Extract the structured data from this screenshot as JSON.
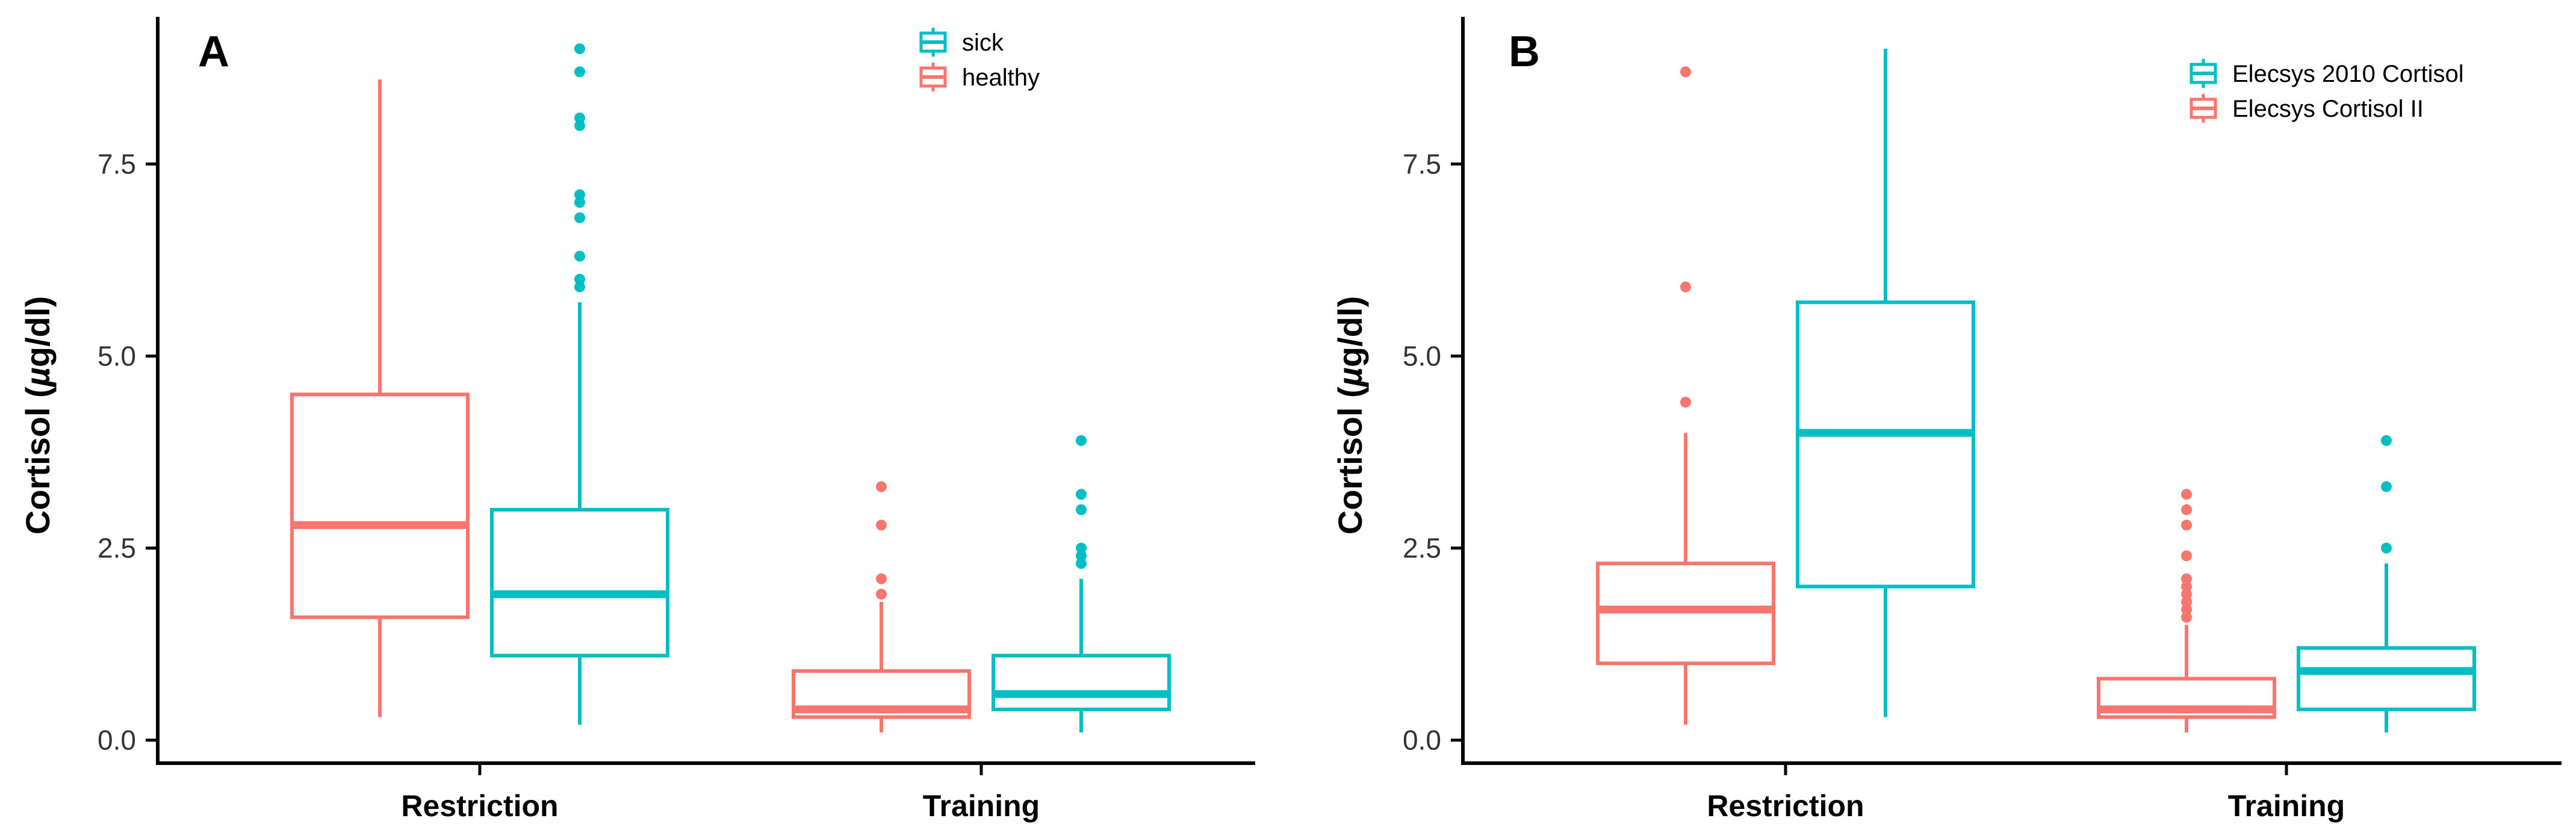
{
  "chart_data": [
    {
      "panel": "A",
      "type": "boxplot",
      "ylabel": "Cortisol (µg/dl)",
      "ylabel_parts": [
        "Cortisol (",
        "µ",
        "g/dl)"
      ],
      "ylim": [
        -0.3,
        9.4
      ],
      "yticks": [
        0.0,
        2.5,
        5.0,
        7.5
      ],
      "ytick_labels": [
        "0.0",
        "2.5",
        "5.0",
        "7.5"
      ],
      "categories": [
        "Restriction",
        "Training"
      ],
      "legend_position": "top-center",
      "legend_order": [
        "sick",
        "healthy"
      ],
      "series": [
        {
          "name": "healthy",
          "color": "#F8766D",
          "boxes": [
            {
              "category": "Restriction",
              "min": 0.3,
              "q1": 1.6,
              "median": 2.8,
              "q3": 4.5,
              "max": 8.6,
              "outliers": []
            },
            {
              "category": "Training",
              "min": 0.1,
              "q1": 0.3,
              "median": 0.4,
              "q3": 0.9,
              "max": 1.8,
              "outliers": [
                1.9,
                2.1,
                2.8,
                3.3
              ]
            }
          ]
        },
        {
          "name": "sick",
          "color": "#00BFC4",
          "boxes": [
            {
              "category": "Restriction",
              "min": 0.2,
              "q1": 1.1,
              "median": 1.9,
              "q3": 3.0,
              "max": 5.7,
              "outliers": [
                5.9,
                6.0,
                6.3,
                6.8,
                7.0,
                7.1,
                8.0,
                8.1,
                8.7,
                9.0
              ]
            },
            {
              "category": "Training",
              "min": 0.1,
              "q1": 0.4,
              "median": 0.6,
              "q3": 1.1,
              "max": 2.1,
              "outliers": [
                2.3,
                2.4,
                2.5,
                3.0,
                3.2,
                3.9
              ]
            }
          ]
        }
      ]
    },
    {
      "panel": "B",
      "type": "boxplot",
      "ylabel": "Cortisol (µg/dl)",
      "ylabel_parts": [
        "Cortisol (",
        "µ",
        "g/dl)"
      ],
      "ylim": [
        -0.3,
        9.4
      ],
      "yticks": [
        0.0,
        2.5,
        5.0,
        7.5
      ],
      "ytick_labels": [
        "0.0",
        "2.5",
        "5.0",
        "7.5"
      ],
      "categories": [
        "Restriction",
        "Training"
      ],
      "legend_position": "top-right",
      "legend_order": [
        "Elecsys 2010 Cortisol",
        "Elecsys Cortisol II"
      ],
      "series": [
        {
          "name": "Elecsys Cortisol II",
          "color": "#F8766D",
          "boxes": [
            {
              "category": "Restriction",
              "min": 0.2,
              "q1": 1.0,
              "median": 1.7,
              "q3": 2.3,
              "max": 4.0,
              "outliers": [
                4.4,
                5.9,
                8.7
              ]
            },
            {
              "category": "Training",
              "min": 0.1,
              "q1": 0.3,
              "median": 0.4,
              "q3": 0.8,
              "max": 1.5,
              "outliers": [
                1.6,
                1.7,
                1.8,
                1.9,
                2.0,
                2.1,
                2.4,
                2.8,
                3.0,
                3.2
              ]
            }
          ]
        },
        {
          "name": "Elecsys 2010 Cortisol",
          "color": "#00BFC4",
          "boxes": [
            {
              "category": "Restriction",
              "min": 0.3,
              "q1": 2.0,
              "median": 4.0,
              "q3": 5.7,
              "max": 9.0,
              "outliers": []
            },
            {
              "category": "Training",
              "min": 0.1,
              "q1": 0.4,
              "median": 0.9,
              "q3": 1.2,
              "max": 2.3,
              "outliers": [
                2.5,
                3.3,
                3.9
              ]
            }
          ]
        }
      ]
    }
  ]
}
